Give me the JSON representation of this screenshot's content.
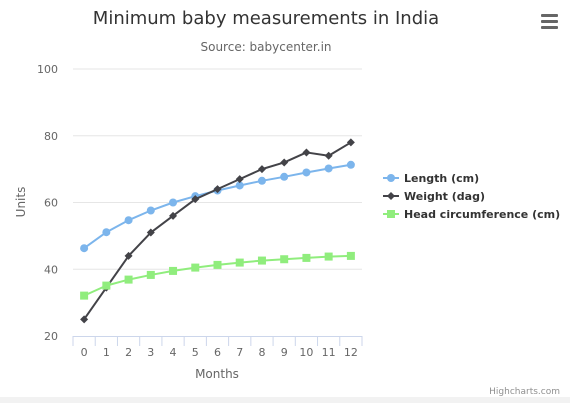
{
  "chart_data": {
    "type": "line",
    "title": "Minimum baby measurements in India",
    "subtitle": "Source: babycenter.in",
    "xlabel": "Months",
    "ylabel": "Units",
    "categories": [
      "0",
      "1",
      "2",
      "3",
      "4",
      "5",
      "6",
      "7",
      "8",
      "9",
      "10",
      "11",
      "12"
    ],
    "ylim": [
      20,
      100
    ],
    "yticks": [
      20,
      40,
      60,
      80,
      100
    ],
    "grid": true,
    "legend_position": "right",
    "series": [
      {
        "name": "Length (cm)",
        "color": "#7cb5ec",
        "marker": "circle",
        "values": [
          46.3,
          51.1,
          54.7,
          57.6,
          60.0,
          61.9,
          63.6,
          65.1,
          66.5,
          67.7,
          69.0,
          70.2,
          71.3
        ]
      },
      {
        "name": "Weight (dag)",
        "color": "#434348",
        "marker": "diamond",
        "values": [
          25,
          34.5,
          44,
          51,
          56,
          61,
          64,
          67,
          70,
          72,
          75,
          74,
          78
        ]
      },
      {
        "name": "Head circumference (cm)",
        "color": "#90ed7d",
        "marker": "square",
        "values": [
          32.1,
          35.1,
          36.9,
          38.3,
          39.5,
          40.5,
          41.3,
          42.0,
          42.6,
          43.0,
          43.4,
          43.8,
          44.0
        ]
      }
    ]
  },
  "menu": {
    "icon": "hamburger-menu-icon"
  },
  "credits": {
    "text": "Highcharts.com"
  }
}
